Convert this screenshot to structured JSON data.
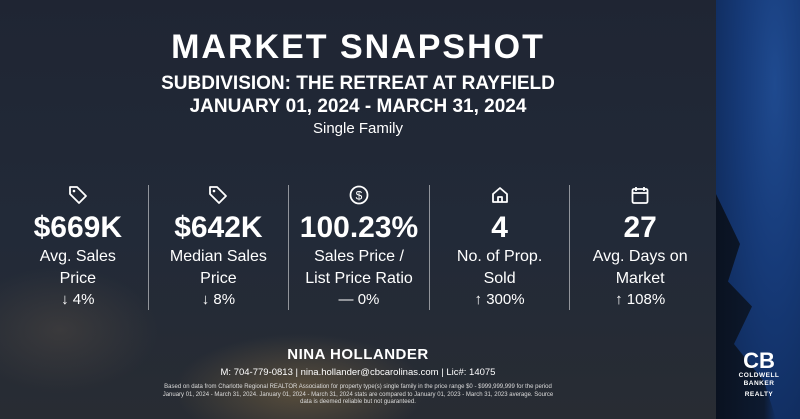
{
  "header": {
    "title": "MARKET SNAPSHOT",
    "subdivision": "SUBDIVISION: THE RETREAT AT RAYFIELD",
    "date_range": "JANUARY 01, 2024 - MARCH 31, 2024",
    "property_type": "Single Family"
  },
  "stats": [
    {
      "icon": "price-tag-icon",
      "value": "$669K",
      "label1": "Avg. Sales",
      "label2": "Price",
      "change": "↓ 4%"
    },
    {
      "icon": "price-tag-icon",
      "value": "$642K",
      "label1": "Median Sales",
      "label2": "Price",
      "change": "↓ 8%"
    },
    {
      "icon": "dollar-circle-icon",
      "value": "100.23%",
      "label1": "Sales Price /",
      "label2": "List Price Ratio",
      "change": "— 0%"
    },
    {
      "icon": "home-icon",
      "value": "4",
      "label1": "No. of Prop.",
      "label2": "Sold",
      "change": "↑ 300%"
    },
    {
      "icon": "calendar-icon",
      "value": "27",
      "label1": "Avg. Days on",
      "label2": "Market",
      "change": "↑ 108%"
    }
  ],
  "footer": {
    "agent": "NINA HOLLANDER",
    "contact": "M: 704-779-0813 | nina.hollander@cbcarolinas.com | Lic#: 14075",
    "disclaimer": "Based on data from Charlotte Regional REALTOR Association for property type(s) single family in the price range $0 - $999,999,999 for the period January 01, 2024 - March 31, 2024. January 01, 2024 - March 31, 2024 stats are compared to January 01, 2023 - March 31, 2023 average. Source data is deemed reliable but not guaranteed."
  },
  "logo": {
    "mark": "CB",
    "line1": "COLDWELL",
    "line2": "BANKER",
    "line3": "REALTY"
  }
}
